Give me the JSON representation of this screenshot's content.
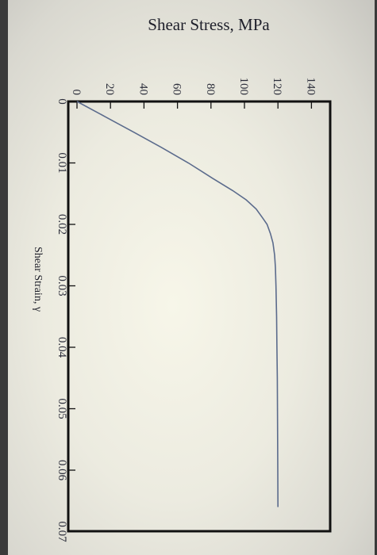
{
  "chart_data": {
    "type": "line",
    "title": "Shear Stress, MPa",
    "xlabel": "Shear Strain, γ",
    "ylabel": "",
    "x_ticks": [
      "0",
      "0.01",
      "0.02",
      "0.03",
      "0.04",
      "0.05",
      "0.06",
      "0.07"
    ],
    "y_ticks": [
      "0",
      "20",
      "40",
      "60",
      "80",
      "100",
      "120",
      "140"
    ],
    "xlim": [
      0,
      0.07
    ],
    "ylim": [
      0,
      150
    ],
    "orientation": "rotated 90° clockwise",
    "grid": false,
    "series": [
      {
        "x": [
          0,
          0.0025,
          0.005,
          0.0075,
          0.01,
          0.0125,
          0.0145,
          0.016,
          0.0175,
          0.019,
          0.02,
          0.0215,
          0.023,
          0.025,
          0.027,
          0.03,
          0.035,
          0.04,
          0.045,
          0.05,
          0.055,
          0.06,
          0.066
        ],
        "y": [
          0,
          17,
          34,
          50.5,
          66.5,
          81,
          93,
          101,
          107,
          111,
          113.5,
          115.5,
          117,
          118,
          118.5,
          118.8,
          119.2,
          119.4,
          119.6,
          119.7,
          119.8,
          119.9,
          120
        ],
        "color": "#5b6b8c"
      }
    ]
  }
}
